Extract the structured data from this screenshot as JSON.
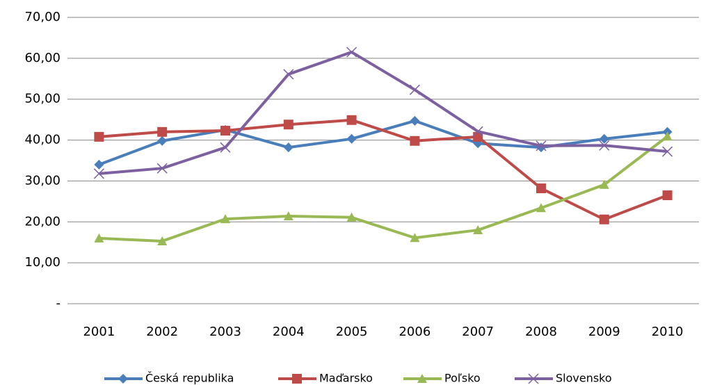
{
  "chart_data": {
    "type": "line",
    "categories": [
      "2001",
      "2002",
      "2003",
      "2004",
      "2005",
      "2006",
      "2007",
      "2008",
      "2009",
      "2010"
    ],
    "series": [
      {
        "name": "Česká republika",
        "color": "#4a7ebb",
        "marker": "diamond",
        "values": [
          34.0,
          39.8,
          42.5,
          38.2,
          40.3,
          44.7,
          39.2,
          38.2,
          40.3,
          42.0
        ]
      },
      {
        "name": "Maďarsko",
        "color": "#be4b48",
        "marker": "square",
        "values": [
          40.8,
          42.0,
          42.3,
          43.8,
          44.9,
          39.8,
          40.8,
          28.2,
          20.6,
          26.5
        ]
      },
      {
        "name": "Poľsko",
        "color": "#98b954",
        "marker": "triangle",
        "values": [
          16.0,
          15.3,
          20.7,
          21.4,
          21.1,
          16.1,
          18.0,
          23.4,
          29.1,
          40.9
        ]
      },
      {
        "name": "Slovensko",
        "color": "#7d60a0",
        "marker": "x",
        "values": [
          31.8,
          33.1,
          38.2,
          56.1,
          61.5,
          52.3,
          42.1,
          38.6,
          38.7,
          37.2
        ]
      }
    ],
    "ylim": [
      0,
      70
    ],
    "yticks": [
      {
        "value": 0,
        "label": "-"
      },
      {
        "value": 10,
        "label": "10,00"
      },
      {
        "value": 20,
        "label": "20,00"
      },
      {
        "value": 30,
        "label": "30,00"
      },
      {
        "value": 40,
        "label": "40,00"
      },
      {
        "value": 50,
        "label": "50,00"
      },
      {
        "value": 60,
        "label": "60,00"
      },
      {
        "value": 70,
        "label": "70,00"
      }
    ],
    "grid": true,
    "legend": "bottom"
  }
}
